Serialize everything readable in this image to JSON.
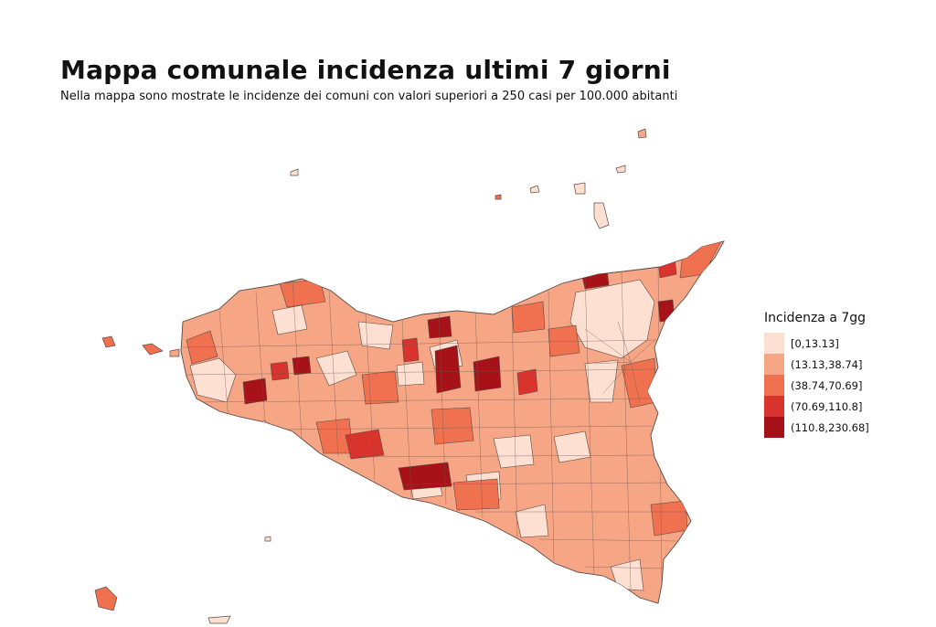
{
  "title": "Mappa comunale incidenza ultimi 7 giorni",
  "subtitle": "Nella mappa sono mostrate le incidenze dei comuni con valori superiori a 250 casi per 100.000 abitanti",
  "legend": {
    "title": "Incidenza a 7gg",
    "items": [
      {
        "label": "[0,13.13]",
        "color": "#fde0d2"
      },
      {
        "label": "(13.13,38.74]",
        "color": "#f6a585"
      },
      {
        "label": "(38.74,70.69]",
        "color": "#f0714f"
      },
      {
        "label": "(70.69,110.8]",
        "color": "#d9332e"
      },
      {
        "label": "(110.8,230.68]",
        "color": "#a61217"
      }
    ]
  },
  "colors": {
    "border": "#5a4a45"
  }
}
